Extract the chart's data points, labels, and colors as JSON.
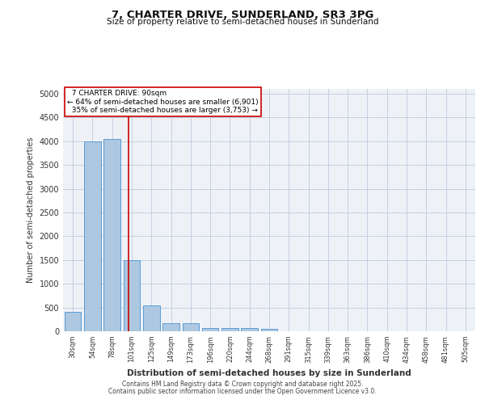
{
  "title": "7, CHARTER DRIVE, SUNDERLAND, SR3 3PG",
  "subtitle": "Size of property relative to semi-detached houses in Sunderland",
  "xlabel": "Distribution of semi-detached houses by size in Sunderland",
  "ylabel": "Number of semi-detached properties",
  "bin_labels": [
    "30sqm",
    "54sqm",
    "78sqm",
    "101sqm",
    "125sqm",
    "149sqm",
    "173sqm",
    "196sqm",
    "220sqm",
    "244sqm",
    "268sqm",
    "291sqm",
    "315sqm",
    "339sqm",
    "363sqm",
    "386sqm",
    "410sqm",
    "434sqm",
    "458sqm",
    "481sqm",
    "505sqm"
  ],
  "bar_heights": [
    400,
    4000,
    4050,
    1500,
    550,
    175,
    175,
    75,
    65,
    65,
    45,
    0,
    0,
    0,
    0,
    0,
    0,
    0,
    0,
    0,
    0
  ],
  "bar_color": "#adc8e0",
  "bar_edgecolor": "#5b9bd5",
  "property_label": "7 CHARTER DRIVE: 90sqm",
  "pct_smaller": 64,
  "pct_smaller_n": "6,901",
  "pct_larger": 35,
  "pct_larger_n": "3,753",
  "vline_color": "#cc0000",
  "vline_x_bin": 2.83,
  "annotation_box_color": "#cc0000",
  "footer1": "Contains HM Land Registry data © Crown copyright and database right 2025.",
  "footer2": "Contains public sector information licensed under the Open Government Licence v3.0.",
  "ylim": [
    0,
    5100
  ],
  "background_color": "#eef2f7",
  "grid_color": "#c5cfe0"
}
